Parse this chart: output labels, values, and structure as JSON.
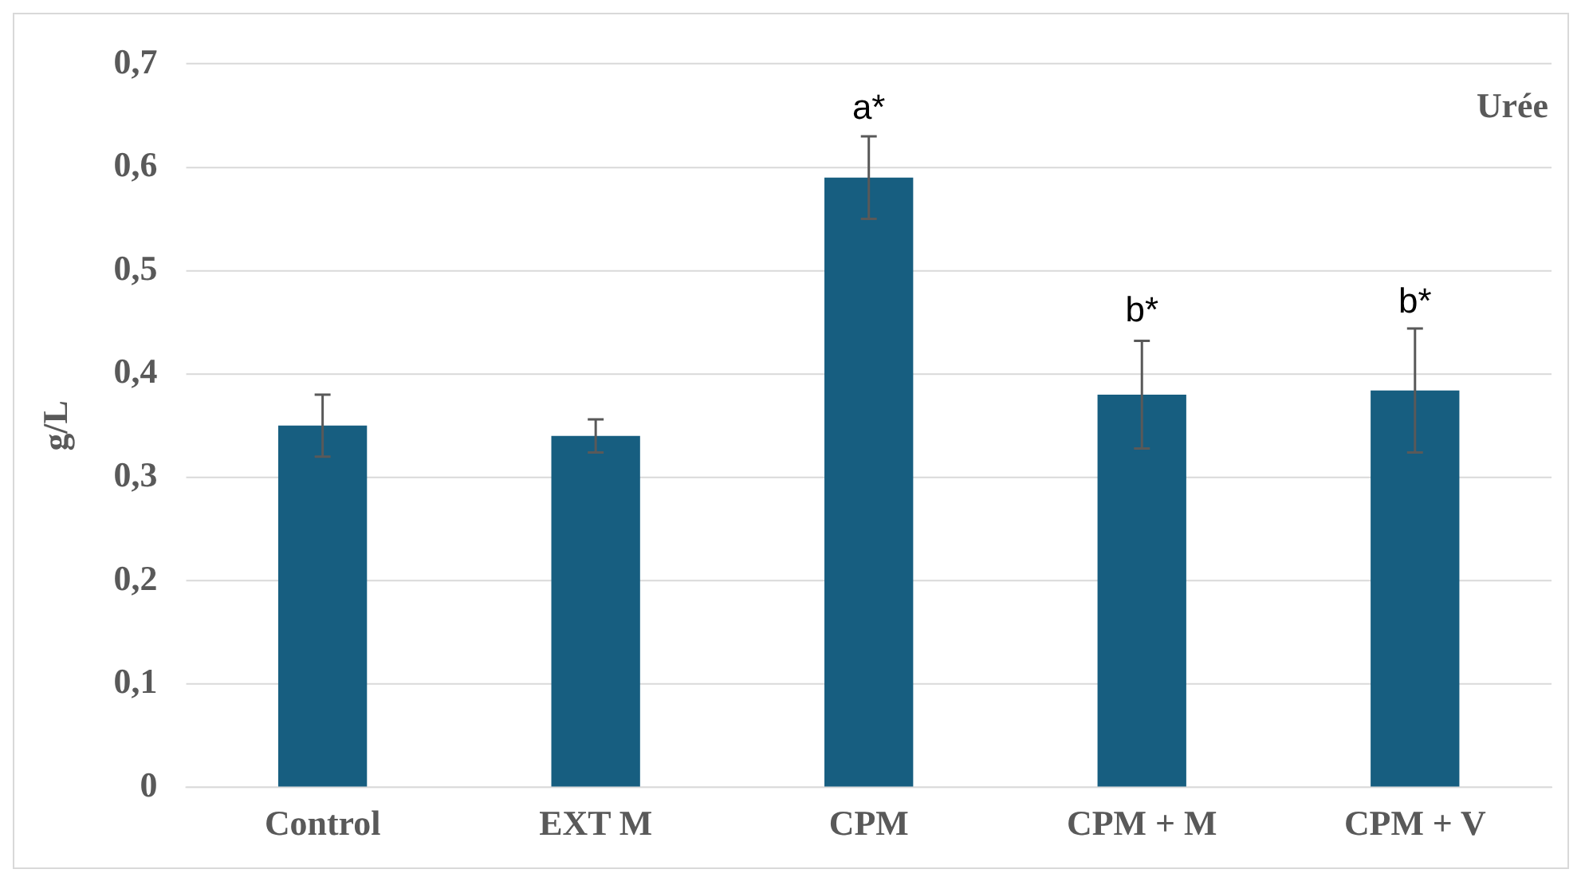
{
  "chart_data": {
    "type": "bar",
    "ylabel": "g/L",
    "categories": [
      "Control",
      "EXT M",
      "CPM",
      "CPM + M",
      "CPM + V"
    ],
    "values": [
      0.35,
      0.34,
      0.59,
      0.38,
      0.384
    ],
    "errors": [
      0.03,
      0.016,
      0.04,
      0.052,
      0.06
    ],
    "color": "#175e80",
    "ylim": [
      0,
      0.7
    ],
    "yticks": [
      0,
      {
        "value": 0.1,
        "label": "0,1"
      },
      {
        "value": 0.2,
        "label": "0,2"
      },
      {
        "value": 0.3,
        "label": "0,3"
      },
      {
        "value": 0.4,
        "label": "0,4"
      },
      {
        "value": 0.5,
        "label": "0,5"
      },
      {
        "value": 0.6,
        "label": "0,6"
      },
      {
        "value": 0.7,
        "label": "0,7"
      }
    ],
    "grid": "y",
    "legend": false,
    "annotations": [
      {
        "text": "a*",
        "x": "CPM",
        "y": 0.63
      },
      {
        "text": "b*",
        "x": "CPM + M",
        "y": 0.434
      },
      {
        "text": "b*",
        "x": "CPM + V",
        "y": 0.443
      },
      "Urée"
    ]
  }
}
